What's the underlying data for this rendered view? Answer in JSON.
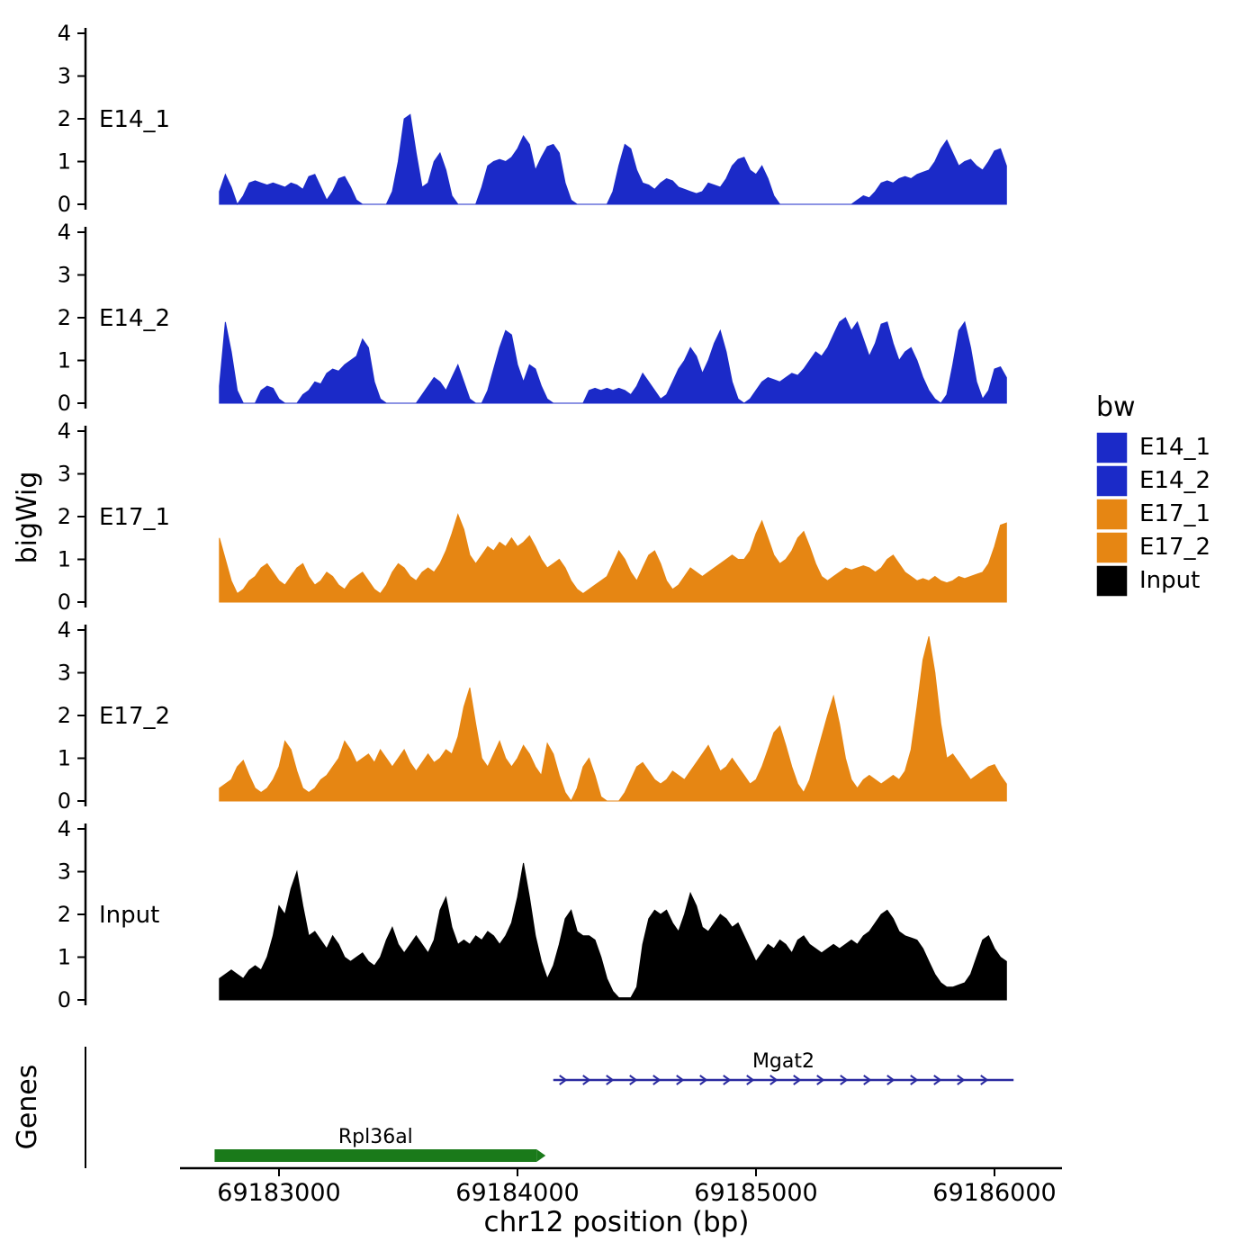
{
  "chart_data": {
    "type": "area",
    "title": "",
    "xlabel": "chr12 position (bp)",
    "ylabel": "bigWig",
    "genes_label": "Genes",
    "ylim": [
      0,
      4
    ],
    "y_ticks": [
      0,
      1,
      2,
      3,
      4
    ],
    "x_ticks": [
      {
        "bp": 69183000,
        "label": "69183000"
      },
      {
        "bp": 69184000,
        "label": "69184000"
      },
      {
        "bp": 69185000,
        "label": "69185000"
      },
      {
        "bp": 69186000,
        "label": "69186000"
      }
    ],
    "x_start_bp": 69182750,
    "x_step_bp": 25,
    "x_end_bp": 69186050,
    "series": [
      {
        "name": "E14_1",
        "color": "#1B2AC8",
        "values": [
          0.3,
          0.7,
          0.4,
          0,
          0.2,
          0.5,
          0.55,
          0.5,
          0.45,
          0.5,
          0.45,
          0.4,
          0.5,
          0.45,
          0.35,
          0.65,
          0.7,
          0.4,
          0.1,
          0.3,
          0.6,
          0.65,
          0.4,
          0.1,
          0,
          0,
          0,
          0,
          0,
          0.3,
          1.0,
          2.0,
          2.1,
          1.2,
          0.4,
          0.5,
          1.0,
          1.2,
          0.8,
          0.2,
          0,
          0,
          0,
          0,
          0.4,
          0.9,
          1.0,
          1.05,
          1.0,
          1.1,
          1.3,
          1.6,
          1.4,
          0.8,
          1.1,
          1.35,
          1.4,
          1.2,
          0.5,
          0.1,
          0,
          0,
          0,
          0,
          0,
          0,
          0.3,
          0.9,
          1.4,
          1.3,
          0.8,
          0.5,
          0.45,
          0.35,
          0.5,
          0.6,
          0.55,
          0.4,
          0.35,
          0.3,
          0.25,
          0.3,
          0.5,
          0.45,
          0.4,
          0.6,
          0.9,
          1.05,
          1.1,
          0.8,
          0.7,
          0.9,
          0.6,
          0.2,
          0,
          0,
          0,
          0,
          0,
          0,
          0,
          0,
          0,
          0,
          0,
          0,
          0,
          0.1,
          0.2,
          0.15,
          0.3,
          0.5,
          0.55,
          0.5,
          0.6,
          0.65,
          0.6,
          0.7,
          0.75,
          0.8,
          1.0,
          1.3,
          1.5,
          1.2,
          0.9,
          1.0,
          1.05,
          0.9,
          0.8,
          1.0,
          1.25,
          1.3,
          0.9
        ]
      },
      {
        "name": "E14_2",
        "color": "#1B2AC8",
        "values": [
          0.4,
          1.9,
          1.2,
          0.3,
          0,
          0,
          0,
          0.3,
          0.4,
          0.35,
          0.1,
          0,
          0,
          0,
          0.2,
          0.3,
          0.5,
          0.45,
          0.7,
          0.8,
          0.75,
          0.9,
          1.0,
          1.1,
          1.5,
          1.3,
          0.5,
          0.1,
          0,
          0,
          0,
          0,
          0,
          0,
          0.2,
          0.4,
          0.6,
          0.5,
          0.3,
          0.6,
          0.9,
          0.5,
          0.1,
          0,
          0,
          0.3,
          0.8,
          1.3,
          1.7,
          1.6,
          0.9,
          0.5,
          0.9,
          0.8,
          0.4,
          0.1,
          0,
          0,
          0,
          0,
          0,
          0,
          0.3,
          0.35,
          0.3,
          0.35,
          0.3,
          0.35,
          0.3,
          0.2,
          0.4,
          0.7,
          0.5,
          0.3,
          0.1,
          0.2,
          0.5,
          0.8,
          1.0,
          1.3,
          1.1,
          0.7,
          1.0,
          1.4,
          1.7,
          1.2,
          0.5,
          0.1,
          0,
          0.1,
          0.3,
          0.5,
          0.6,
          0.55,
          0.5,
          0.6,
          0.7,
          0.65,
          0.8,
          1.0,
          1.2,
          1.1,
          1.3,
          1.6,
          1.9,
          2.0,
          1.7,
          1.9,
          1.5,
          1.1,
          1.4,
          1.85,
          1.9,
          1.4,
          1.0,
          1.2,
          1.3,
          1.0,
          0.6,
          0.3,
          0.1,
          0,
          0.2,
          0.9,
          1.7,
          1.9,
          1.3,
          0.5,
          0.1,
          0.3,
          0.8,
          0.85,
          0.6
        ]
      },
      {
        "name": "E17_1",
        "color": "#E68613",
        "values": [
          1.5,
          1.0,
          0.5,
          0.2,
          0.3,
          0.5,
          0.6,
          0.8,
          0.9,
          0.7,
          0.5,
          0.4,
          0.6,
          0.8,
          0.9,
          0.6,
          0.4,
          0.5,
          0.7,
          0.6,
          0.4,
          0.3,
          0.5,
          0.6,
          0.7,
          0.5,
          0.3,
          0.2,
          0.4,
          0.7,
          0.9,
          0.8,
          0.6,
          0.5,
          0.7,
          0.8,
          0.7,
          0.9,
          1.2,
          1.6,
          2.05,
          1.7,
          1.1,
          0.9,
          1.1,
          1.3,
          1.2,
          1.4,
          1.3,
          1.5,
          1.3,
          1.4,
          1.55,
          1.3,
          1.0,
          0.8,
          0.9,
          1.0,
          0.8,
          0.5,
          0.3,
          0.2,
          0.3,
          0.4,
          0.5,
          0.6,
          0.9,
          1.2,
          1.0,
          0.7,
          0.5,
          0.8,
          1.1,
          1.2,
          0.9,
          0.5,
          0.3,
          0.4,
          0.6,
          0.8,
          0.7,
          0.6,
          0.7,
          0.8,
          0.9,
          1.0,
          1.1,
          1.0,
          1.0,
          1.2,
          1.6,
          1.9,
          1.5,
          1.1,
          0.9,
          1.0,
          1.2,
          1.5,
          1.65,
          1.3,
          0.9,
          0.6,
          0.5,
          0.6,
          0.7,
          0.8,
          0.75,
          0.8,
          0.85,
          0.8,
          0.7,
          0.8,
          1.0,
          1.1,
          0.9,
          0.7,
          0.6,
          0.5,
          0.55,
          0.5,
          0.6,
          0.5,
          0.45,
          0.5,
          0.6,
          0.55,
          0.6,
          0.65,
          0.7,
          0.9,
          1.3,
          1.8,
          1.85
        ]
      },
      {
        "name": "E17_2",
        "color": "#E68613",
        "values": [
          0.3,
          0.4,
          0.5,
          0.8,
          0.95,
          0.6,
          0.3,
          0.2,
          0.3,
          0.5,
          0.8,
          1.4,
          1.2,
          0.7,
          0.3,
          0.2,
          0.3,
          0.5,
          0.6,
          0.8,
          1.0,
          1.4,
          1.2,
          0.9,
          1.0,
          1.1,
          0.9,
          1.2,
          1.0,
          0.8,
          1.0,
          1.2,
          0.9,
          0.7,
          0.9,
          1.1,
          0.9,
          1.0,
          1.2,
          1.1,
          1.5,
          2.2,
          2.65,
          1.8,
          1.0,
          0.8,
          1.1,
          1.4,
          1.0,
          0.8,
          1.0,
          1.3,
          1.1,
          0.8,
          0.6,
          1.35,
          1.1,
          0.6,
          0.2,
          0,
          0.3,
          0.8,
          1.0,
          0.6,
          0.1,
          0,
          0,
          0,
          0.2,
          0.5,
          0.8,
          0.9,
          0.7,
          0.5,
          0.4,
          0.5,
          0.7,
          0.6,
          0.5,
          0.7,
          0.9,
          1.1,
          1.3,
          1.0,
          0.7,
          0.8,
          1.0,
          0.8,
          0.6,
          0.4,
          0.5,
          0.8,
          1.2,
          1.6,
          1.75,
          1.3,
          0.8,
          0.4,
          0.2,
          0.5,
          1.0,
          1.5,
          2.0,
          2.45,
          1.8,
          1.0,
          0.5,
          0.3,
          0.5,
          0.6,
          0.5,
          0.4,
          0.5,
          0.6,
          0.5,
          0.7,
          1.2,
          2.2,
          3.3,
          3.85,
          3.0,
          1.8,
          1.0,
          1.1,
          0.9,
          0.7,
          0.5,
          0.6,
          0.7,
          0.8,
          0.85,
          0.6,
          0.4
        ]
      },
      {
        "name": "Input",
        "color": "#000000",
        "values": [
          0.5,
          0.6,
          0.7,
          0.6,
          0.5,
          0.7,
          0.8,
          0.7,
          1.0,
          1.5,
          2.2,
          2.0,
          2.6,
          3.0,
          2.2,
          1.5,
          1.6,
          1.4,
          1.2,
          1.5,
          1.3,
          1.0,
          0.9,
          1.0,
          1.1,
          0.9,
          0.8,
          1.0,
          1.4,
          1.7,
          1.3,
          1.1,
          1.3,
          1.5,
          1.3,
          1.1,
          1.4,
          2.1,
          2.4,
          1.7,
          1.3,
          1.4,
          1.3,
          1.5,
          1.4,
          1.6,
          1.5,
          1.3,
          1.5,
          1.8,
          2.4,
          3.2,
          2.4,
          1.5,
          0.9,
          0.5,
          0.8,
          1.3,
          1.9,
          2.1,
          1.6,
          1.5,
          1.5,
          1.4,
          1.0,
          0.5,
          0.2,
          0.05,
          0.05,
          0.05,
          0.3,
          1.3,
          1.9,
          2.1,
          2.0,
          2.1,
          1.8,
          1.6,
          2.0,
          2.5,
          2.2,
          1.7,
          1.6,
          1.8,
          2.0,
          1.9,
          1.7,
          1.8,
          1.5,
          1.2,
          0.9,
          1.1,
          1.3,
          1.2,
          1.4,
          1.3,
          1.1,
          1.4,
          1.5,
          1.3,
          1.2,
          1.1,
          1.2,
          1.3,
          1.2,
          1.3,
          1.4,
          1.3,
          1.5,
          1.6,
          1.8,
          2.0,
          2.1,
          1.9,
          1.6,
          1.5,
          1.45,
          1.4,
          1.2,
          0.9,
          0.6,
          0.4,
          0.3,
          0.3,
          0.35,
          0.4,
          0.6,
          1.0,
          1.4,
          1.5,
          1.2,
          1.0,
          0.9
        ]
      }
    ],
    "genes": [
      {
        "name": "Mgat2",
        "start_bp": 69184150,
        "end_bp": 69186080,
        "color": "#2A2AA0",
        "glyph": "arrow-line",
        "strand": "+"
      },
      {
        "name": "Rpl36al",
        "start_bp": 69182730,
        "end_bp": 69184080,
        "color": "#1A7A1A",
        "glyph": "box"
      }
    ],
    "legend": {
      "title": "bw",
      "entries": [
        {
          "label": "E14_1",
          "color": "#1B2AC8"
        },
        {
          "label": "E14_2",
          "color": "#1B2AC8"
        },
        {
          "label": "E17_1",
          "color": "#E68613"
        },
        {
          "label": "E17_2",
          "color": "#E68613"
        },
        {
          "label": "Input",
          "color": "#000000"
        }
      ]
    }
  }
}
